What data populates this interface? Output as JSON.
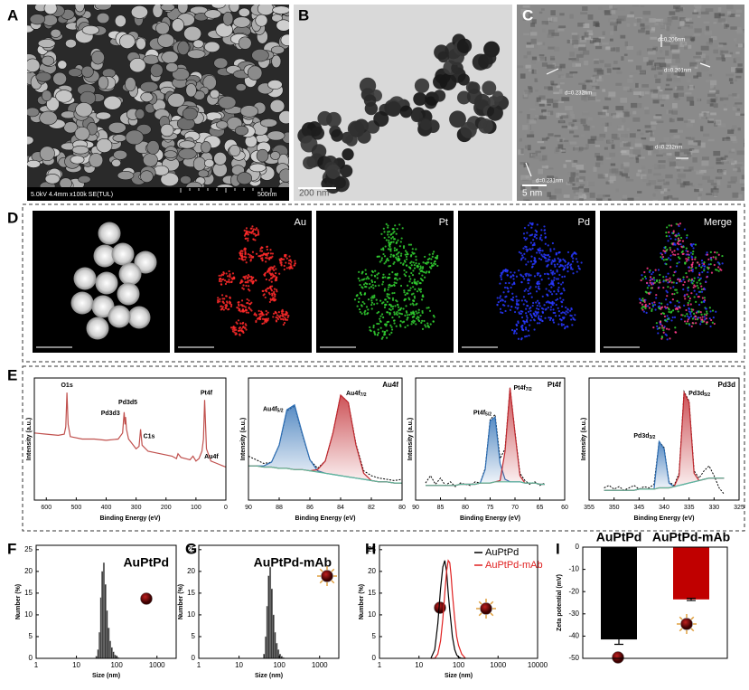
{
  "panels": [
    {
      "label": "A",
      "caption": "5.0kV 4.4mm x100k SE(TUL)",
      "scale_bar": "500nm"
    },
    {
      "label": "B",
      "scale_bar": "200 nm"
    },
    {
      "label": "C",
      "scale_bar": "5 nm",
      "annotations": [
        "d=0.206nm",
        "d=0.201nm",
        "d=0.232nm",
        "d=0.232nm",
        "d=0.231nm"
      ]
    },
    {
      "label": "D",
      "channels": [
        "Au",
        "Pt",
        "Pd",
        "Merge"
      ]
    },
    {
      "label": "E"
    },
    {
      "label": "F"
    },
    {
      "label": "G"
    },
    {
      "label": "H"
    },
    {
      "label": "I"
    }
  ],
  "chart_data": [
    {
      "type": "line",
      "x_label": "Binding Energy (eV)",
      "y_label": "Intensity (a.u.)",
      "x": [
        640,
        600,
        560,
        540,
        535,
        531,
        527,
        520,
        480,
        440,
        400,
        360,
        345,
        340,
        337,
        335,
        332,
        325,
        300,
        290,
        285,
        280,
        260,
        220,
        180,
        165,
        160,
        150,
        120,
        110,
        100,
        90,
        80,
        75,
        71,
        65,
        50,
        30,
        10,
        0
      ],
      "series": [
        {
          "color": "#c0504d",
          "values": [
            55,
            54,
            53,
            54,
            60,
            88,
            62,
            52,
            50,
            50,
            49,
            50,
            55,
            72,
            62,
            68,
            58,
            50,
            42,
            44,
            58,
            45,
            40,
            38,
            36,
            34,
            38,
            35,
            33,
            36,
            32,
            34,
            40,
            50,
            82,
            42,
            32,
            30,
            28,
            27
          ]
        }
      ],
      "xlim": [
        640,
        0
      ],
      "xticks": [
        600,
        500,
        400,
        300,
        200,
        100,
        0
      ],
      "ylim": [
        0,
        100
      ],
      "annotations": [
        {
          "text": "O1s",
          "x": 531
        },
        {
          "text": "Pd3d5",
          "x": 335
        },
        {
          "text": "Pd3d3",
          "x": 345
        },
        {
          "text": "C1s",
          "x": 285
        },
        {
          "text": "Pt4f",
          "x": 71
        },
        {
          "text": "Au4f",
          "x": 84
        }
      ]
    },
    {
      "type": "line",
      "title": "Au4f",
      "x_label": "Binding Energy (eV)",
      "y_label": "Intensity (a.u.)",
      "x": [
        90,
        89.5,
        89,
        88.5,
        88,
        87.5,
        87,
        86.5,
        86,
        85.5,
        85,
        84.5,
        84,
        83.5,
        83,
        82.5,
        82,
        81.5,
        81,
        80.5,
        80
      ],
      "series": [
        {
          "color": "#000000",
          "dash": true,
          "values": [
            36,
            33,
            30,
            31,
            45,
            73,
            77,
            54,
            33,
            26,
            32,
            55,
            86,
            80,
            46,
            24,
            20,
            18,
            17,
            16,
            17
          ]
        },
        {
          "color": "#2e6fb5",
          "fill": 3,
          "values": [
            28,
            28,
            28,
            31,
            45,
            74,
            78,
            55,
            33,
            24,
            22,
            21,
            20,
            19,
            18,
            17,
            16,
            15,
            15,
            14,
            14
          ]
        },
        {
          "color": "#c0272d",
          "fill": 3,
          "values": [
            28,
            28,
            27,
            27,
            26,
            26,
            25,
            25,
            24,
            25,
            32,
            55,
            86,
            80,
            45,
            22,
            16,
            15,
            15,
            14,
            14
          ]
        },
        {
          "color": "#5fb89a",
          "values": [
            28,
            28,
            27,
            27,
            26,
            26,
            25,
            25,
            24,
            23,
            22,
            21,
            20,
            19,
            18,
            17,
            16,
            15,
            15,
            14,
            14
          ]
        }
      ],
      "xlim": [
        90,
        80
      ],
      "xticks": [
        90,
        88,
        86,
        84,
        82,
        80
      ],
      "ylim": [
        0,
        100
      ],
      "annotations": [
        {
          "text": "Au4f",
          "sub": "5/2",
          "x": 87.5
        },
        {
          "text": "Au4f",
          "sub": "7/2",
          "x": 84
        }
      ]
    },
    {
      "type": "line",
      "title": "Pt4f",
      "x_label": "Binding Energy (eV)",
      "y_label": "Intensity (a.u.)",
      "x": [
        88,
        87,
        86,
        85,
        84,
        83,
        82,
        81,
        80,
        79,
        78,
        77,
        76,
        75,
        74,
        73,
        72,
        71,
        70,
        69,
        68,
        67,
        66,
        65,
        64
      ],
      "series": [
        {
          "color": "#000000",
          "dash": true,
          "values": [
            14,
            20,
            13,
            18,
            12,
            15,
            11,
            14,
            13,
            12,
            15,
            14,
            26,
            66,
            70,
            34,
            42,
            92,
            56,
            22,
            16,
            13,
            15,
            12,
            14
          ]
        },
        {
          "color": "#2e6fb5",
          "fill": 3,
          "values": [
            12,
            12,
            12,
            12,
            12,
            12,
            12,
            13,
            13,
            13,
            13,
            14,
            25,
            65,
            68,
            30,
            17,
            15,
            15,
            15,
            14,
            14,
            14,
            13,
            13
          ]
        },
        {
          "color": "#c0272d",
          "fill": 3,
          "values": [
            12,
            12,
            12,
            12,
            12,
            12,
            12,
            13,
            13,
            13,
            13,
            14,
            14,
            14,
            15,
            16,
            40,
            92,
            55,
            20,
            14,
            14,
            14,
            13,
            13
          ]
        },
        {
          "color": "#5fb89a",
          "values": [
            12,
            12,
            12,
            12,
            12,
            12,
            12,
            13,
            13,
            13,
            13,
            14,
            14,
            14,
            15,
            15,
            15,
            15,
            15,
            15,
            14,
            14,
            14,
            13,
            13
          ]
        }
      ],
      "xlim": [
        90,
        60
      ],
      "xticks": [
        90,
        85,
        80,
        75,
        70,
        65,
        60
      ],
      "ylim": [
        0,
        100
      ],
      "annotations": [
        {
          "text": "Pt4f",
          "sub": "5/2",
          "x": 74
        },
        {
          "text": "Pt4f",
          "sub": "7/2",
          "x": 71
        }
      ]
    },
    {
      "type": "line",
      "title": "Pd3d",
      "x_label": "Binding Energy (eV)",
      "y_label": "Intensity (a.u.)",
      "x": [
        352,
        351,
        350,
        349,
        348,
        347,
        346,
        345,
        344,
        343,
        342,
        341,
        340,
        339,
        338,
        337,
        336,
        335,
        334,
        333,
        332,
        331,
        330,
        329,
        328
      ],
      "series": [
        {
          "color": "#000000",
          "dash": true,
          "values": [
            10,
            12,
            9,
            11,
            8,
            10,
            12,
            9,
            11,
            10,
            13,
            48,
            43,
            15,
            12,
            22,
            89,
            81,
            24,
            18,
            24,
            28,
            20,
            10,
            5
          ]
        },
        {
          "color": "#2e6fb5",
          "fill": 3,
          "values": [
            8,
            8,
            8,
            8,
            8,
            8,
            8,
            9,
            9,
            9,
            9,
            48,
            42,
            14,
            11,
            12,
            13,
            14,
            15,
            16,
            17,
            18,
            18,
            18,
            18
          ]
        },
        {
          "color": "#c0272d",
          "fill": 3,
          "values": [
            8,
            8,
            8,
            8,
            8,
            8,
            8,
            9,
            9,
            9,
            9,
            10,
            10,
            10,
            11,
            20,
            88,
            80,
            22,
            16,
            17,
            18,
            18,
            18,
            18
          ]
        },
        {
          "color": "#5fb89a",
          "values": [
            8,
            8,
            8,
            8,
            8,
            8,
            8,
            9,
            9,
            9,
            9,
            10,
            10,
            10,
            11,
            12,
            13,
            14,
            15,
            16,
            17,
            18,
            18,
            18,
            18
          ]
        }
      ],
      "xlim": [
        355,
        325
      ],
      "xticks": [
        355,
        350,
        345,
        340,
        335,
        330,
        325
      ],
      "ylim": [
        0,
        100
      ],
      "annotations": [
        {
          "text": "Pd3d",
          "sub": "3/2",
          "x": 341
        },
        {
          "text": "Pd3d",
          "sub": "5/2",
          "x": 336
        }
      ]
    },
    {
      "type": "histogram",
      "title": "AuPtPd",
      "x_label": "Size (nm)",
      "y_label": "Number (%)",
      "bins": [
        30,
        33,
        36,
        39,
        42,
        46,
        50,
        55,
        60,
        66,
        72,
        79,
        87,
        95,
        105,
        115
      ],
      "values": [
        0.5,
        2,
        6,
        14,
        20,
        22,
        17,
        11,
        7,
        4,
        2.5,
        1.5,
        0.8,
        0.4,
        0.2
      ],
      "color": "#333333",
      "xlog": true,
      "xlim": [
        1,
        3000
      ],
      "xticks": [
        1,
        10,
        100,
        1000
      ],
      "ylim": [
        0,
        26
      ],
      "yticks": [
        0,
        5,
        10,
        15,
        20,
        25
      ]
    },
    {
      "type": "histogram",
      "title": "AuPtPd-mAb",
      "x_label": "Size (nm)",
      "y_label": "Number (%)",
      "bins": [
        40,
        44,
        48,
        52,
        57,
        62,
        68,
        75,
        82,
        90,
        99,
        109,
        120,
        132
      ],
      "values": [
        1,
        5,
        12,
        19,
        21,
        16,
        10,
        6,
        3.5,
        2,
        1,
        0.5,
        0.2
      ],
      "color": "#333333",
      "xlog": true,
      "xlim": [
        1,
        3000
      ],
      "xticks": [
        1,
        10,
        100,
        1000
      ],
      "ylim": [
        0,
        26
      ],
      "yticks": [
        0,
        5,
        10,
        15,
        20,
        25
      ]
    },
    {
      "type": "line",
      "x_label": "Size (nm)",
      "y_label": "Number (%)",
      "xlog": true,
      "x": [
        20,
        25,
        30,
        35,
        40,
        45,
        50,
        55,
        60,
        65,
        70,
        80,
        90,
        100,
        120,
        150
      ],
      "series": [
        {
          "name": "AuPtPd",
          "color": "#000000",
          "values": [
            0,
            2,
            8,
            16,
            21,
            22.5,
            20,
            15,
            11,
            8,
            5,
            2,
            0.8,
            0.3,
            0,
            0
          ]
        },
        {
          "name": "AuPtPd-mAb",
          "color": "#e02020",
          "values": [
            0,
            0,
            1,
            4,
            9,
            15,
            20,
            22.5,
            22,
            19,
            15,
            9,
            5,
            3,
            1,
            0
          ]
        }
      ],
      "xlim": [
        1,
        10000
      ],
      "xticks": [
        1,
        10,
        100,
        1000,
        10000
      ],
      "ylim": [
        0,
        26
      ],
      "yticks": [
        0,
        5,
        10,
        15,
        20,
        25
      ],
      "legend": "upper right"
    },
    {
      "type": "bar",
      "y_label": "Zeta potential (mV)",
      "categories": [
        "AuPtPd",
        "AuPtPd-mAb"
      ],
      "values": [
        -41.5,
        -23.5
      ],
      "errors": [
        2.2,
        0.5
      ],
      "colors": [
        "#000000",
        "#c00000"
      ],
      "ylim": [
        -50,
        0
      ],
      "yticks": [
        0,
        -10,
        -20,
        -30,
        -40,
        -50
      ]
    }
  ]
}
